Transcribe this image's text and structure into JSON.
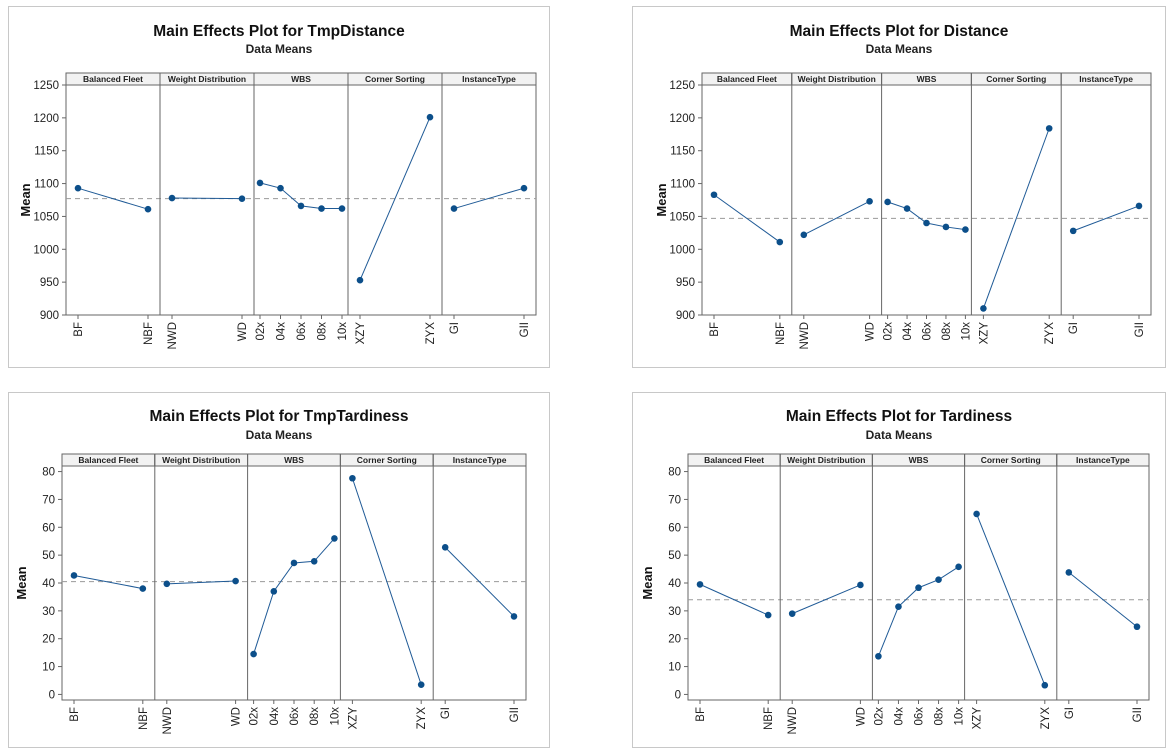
{
  "colors": {
    "series": "#1f5a96",
    "marker": "#0c4f8a",
    "reference": "#9a9a9a",
    "axis": "#666666",
    "header_bg": "#f2f2f2"
  },
  "chart_data": [
    {
      "type": "line",
      "title": "Main Effects Plot for TmpDistance",
      "subtitle": "Data Means",
      "ylabel": "Mean",
      "ylim": [
        900,
        1250
      ],
      "yticks": [
        900,
        950,
        1000,
        1050,
        1100,
        1150,
        1200,
        1250
      ],
      "grand_mean": 1077,
      "factors": [
        {
          "name": "Balanced Fleet",
          "levels": [
            "BF",
            "NBF"
          ],
          "values": [
            1093,
            1061
          ]
        },
        {
          "name": "Weight Distribution",
          "levels": [
            "NWD",
            "WD"
          ],
          "values": [
            1078,
            1077
          ]
        },
        {
          "name": "WBS",
          "levels": [
            "02x",
            "04x",
            "06x",
            "08x",
            "10x"
          ],
          "values": [
            1101,
            1093,
            1066,
            1062,
            1062
          ]
        },
        {
          "name": "Corner Sorting",
          "levels": [
            "XZY",
            "ZYX"
          ],
          "values": [
            953,
            1201
          ]
        },
        {
          "name": "InstanceType",
          "levels": [
            "GI",
            "GII"
          ],
          "values": [
            1062,
            1093
          ]
        }
      ]
    },
    {
      "type": "line",
      "title": "Main Effects Plot for Distance",
      "subtitle": "Data Means",
      "ylabel": "Mean",
      "ylim": [
        900,
        1250
      ],
      "yticks": [
        900,
        950,
        1000,
        1050,
        1100,
        1150,
        1200,
        1250
      ],
      "grand_mean": 1047,
      "factors": [
        {
          "name": "Balanced Fleet",
          "levels": [
            "BF",
            "NBF"
          ],
          "values": [
            1083,
            1011
          ]
        },
        {
          "name": "Weight Distribution",
          "levels": [
            "NWD",
            "WD"
          ],
          "values": [
            1022,
            1073
          ]
        },
        {
          "name": "WBS",
          "levels": [
            "02x",
            "04x",
            "06x",
            "08x",
            "10x"
          ],
          "values": [
            1072,
            1062,
            1040,
            1034,
            1030
          ]
        },
        {
          "name": "Corner Sorting",
          "levels": [
            "XZY",
            "ZYX"
          ],
          "values": [
            910,
            1184
          ]
        },
        {
          "name": "InstanceType",
          "levels": [
            "GI",
            "GII"
          ],
          "values": [
            1028,
            1066
          ]
        }
      ]
    },
    {
      "type": "line",
      "title": "Main Effects Plot for TmpTardiness",
      "subtitle": "Data Means",
      "ylabel": "Mean",
      "ylim": [
        -2,
        82
      ],
      "yticks": [
        0,
        10,
        20,
        30,
        40,
        50,
        60,
        70,
        80
      ],
      "grand_mean": 40.5,
      "factors": [
        {
          "name": "Balanced Fleet",
          "levels": [
            "BF",
            "NBF"
          ],
          "values": [
            42.7,
            38.0
          ]
        },
        {
          "name": "Weight Distribution",
          "levels": [
            "NWD",
            "WD"
          ],
          "values": [
            39.7,
            40.7
          ]
        },
        {
          "name": "WBS",
          "levels": [
            "02x",
            "04x",
            "06x",
            "08x",
            "10x"
          ],
          "values": [
            14.5,
            37.0,
            47.2,
            47.8,
            56.0
          ]
        },
        {
          "name": "Corner Sorting",
          "levels": [
            "XZY",
            "ZYX"
          ],
          "values": [
            77.6,
            3.5
          ]
        },
        {
          "name": "InstanceType",
          "levels": [
            "GI",
            "GII"
          ],
          "values": [
            52.8,
            28.0
          ]
        }
      ]
    },
    {
      "type": "line",
      "title": "Main Effects Plot for Tardiness",
      "subtitle": "Data Means",
      "ylabel": "Mean",
      "ylim": [
        -2,
        82
      ],
      "yticks": [
        0,
        10,
        20,
        30,
        40,
        50,
        60,
        70,
        80
      ],
      "grand_mean": 34.0,
      "factors": [
        {
          "name": "Balanced Fleet",
          "levels": [
            "BF",
            "NBF"
          ],
          "values": [
            39.5,
            28.5
          ]
        },
        {
          "name": "Weight Distribution",
          "levels": [
            "NWD",
            "WD"
          ],
          "values": [
            29.0,
            39.3
          ]
        },
        {
          "name": "WBS",
          "levels": [
            "02x",
            "04x",
            "06x",
            "08x",
            "10x"
          ],
          "values": [
            13.7,
            31.5,
            38.3,
            41.2,
            45.8
          ]
        },
        {
          "name": "Corner Sorting",
          "levels": [
            "XZY",
            "ZYX"
          ],
          "values": [
            64.8,
            3.3
          ]
        },
        {
          "name": "InstanceType",
          "levels": [
            "GI",
            "GII"
          ],
          "values": [
            43.8,
            24.3
          ]
        }
      ]
    }
  ]
}
